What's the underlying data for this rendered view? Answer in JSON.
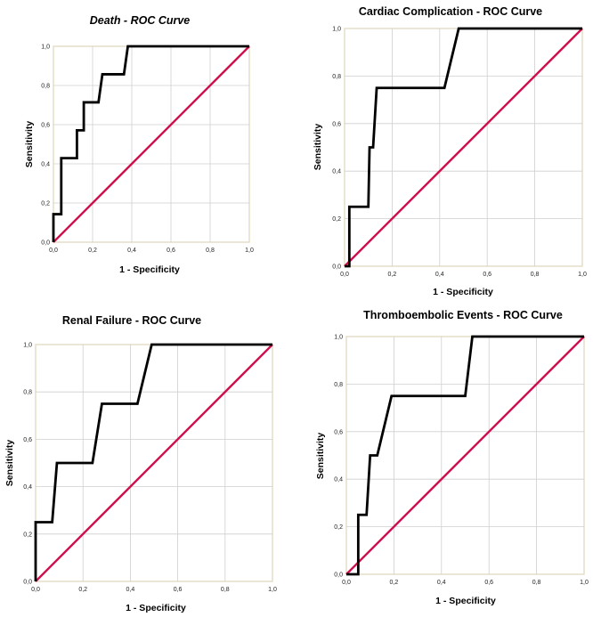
{
  "chart_data": [
    {
      "type": "line",
      "title": "Death -  ROC Curve",
      "title_italic": true,
      "xlabel": "1 - Specificity",
      "ylabel": "Sensitivity",
      "xlim": [
        0,
        1
      ],
      "ylim": [
        0,
        1
      ],
      "x_ticks": [
        "0,0",
        "0,2",
        "0,4",
        "0,6",
        "0,8",
        "1,0"
      ],
      "y_ticks": [
        "0,0",
        "0,2",
        "0,4",
        "0,6",
        "0,8",
        "1,0"
      ],
      "grid": true,
      "series": [
        {
          "name": "ROC curve",
          "color": "#000000",
          "points": [
            [
              0,
              0
            ],
            [
              0,
              0.143
            ],
            [
              0.04,
              0.143
            ],
            [
              0.04,
              0.429
            ],
            [
              0.12,
              0.429
            ],
            [
              0.12,
              0.571
            ],
            [
              0.155,
              0.571
            ],
            [
              0.155,
              0.714
            ],
            [
              0.23,
              0.714
            ],
            [
              0.25,
              0.857
            ],
            [
              0.36,
              0.857
            ],
            [
              0.38,
              1.0
            ],
            [
              1.0,
              1.0
            ]
          ]
        },
        {
          "name": "Reference line",
          "color": "#d0104c",
          "points": [
            [
              0,
              0
            ],
            [
              1,
              1
            ]
          ]
        }
      ]
    },
    {
      "type": "line",
      "title": "Cardiac Complication - ROC Curve",
      "title_italic": false,
      "xlabel": "1 - Specificity",
      "ylabel": "Sensitivity",
      "xlim": [
        0,
        1
      ],
      "ylim": [
        0,
        1
      ],
      "x_ticks": [
        "0,0",
        "0,2",
        "0,4",
        "0,6",
        "0,8",
        "1,0"
      ],
      "y_ticks": [
        "0,0",
        "0,2",
        "0,4",
        "0,6",
        "0,8",
        "1,0"
      ],
      "grid": true,
      "series": [
        {
          "name": "ROC curve",
          "color": "#000000",
          "points": [
            [
              0,
              0
            ],
            [
              0.02,
              0
            ],
            [
              0.02,
              0.25
            ],
            [
              0.1,
              0.25
            ],
            [
              0.105,
              0.5
            ],
            [
              0.12,
              0.5
            ],
            [
              0.135,
              0.75
            ],
            [
              0.42,
              0.75
            ],
            [
              0.48,
              1.0
            ],
            [
              1.0,
              1.0
            ]
          ]
        },
        {
          "name": "Reference line",
          "color": "#d0104c",
          "points": [
            [
              0,
              0
            ],
            [
              1,
              1
            ]
          ]
        }
      ]
    },
    {
      "type": "line",
      "title": "Renal Failure - ROC Curve",
      "title_italic": false,
      "xlabel": "1 - Specificity",
      "ylabel": "Sensitivity",
      "xlim": [
        0,
        1
      ],
      "ylim": [
        0,
        1
      ],
      "x_ticks": [
        "0,0",
        "0,2",
        "0,4",
        "0,6",
        "0,8",
        "1,0"
      ],
      "y_ticks": [
        "0,0",
        "0,2",
        "0,4",
        "0,6",
        "0,8",
        "1,0"
      ],
      "grid": true,
      "series": [
        {
          "name": "ROC curve",
          "color": "#000000",
          "points": [
            [
              0,
              0
            ],
            [
              0,
              0.25
            ],
            [
              0.07,
              0.25
            ],
            [
              0.09,
              0.5
            ],
            [
              0.24,
              0.5
            ],
            [
              0.28,
              0.75
            ],
            [
              0.43,
              0.75
            ],
            [
              0.49,
              1.0
            ],
            [
              1.0,
              1.0
            ]
          ]
        },
        {
          "name": "Reference line",
          "color": "#d0104c",
          "points": [
            [
              0,
              0
            ],
            [
              1,
              1
            ]
          ]
        }
      ]
    },
    {
      "type": "line",
      "title": "Thromboembolic Events - ROC Curve",
      "title_italic": false,
      "xlabel": "1 - Specificity",
      "ylabel": "Sensitivity",
      "xlim": [
        0,
        1
      ],
      "ylim": [
        0,
        1
      ],
      "x_ticks": [
        "0,0",
        "0,2",
        "0,4",
        "0,6",
        "0,8",
        "1,0"
      ],
      "y_ticks": [
        "0,0",
        "0,2",
        "0,4",
        "0,6",
        "0,8",
        "1,0"
      ],
      "grid": true,
      "series": [
        {
          "name": "ROC curve",
          "color": "#000000",
          "points": [
            [
              0,
              0
            ],
            [
              0.05,
              0
            ],
            [
              0.05,
              0.25
            ],
            [
              0.085,
              0.25
            ],
            [
              0.1,
              0.5
            ],
            [
              0.13,
              0.5
            ],
            [
              0.19,
              0.75
            ],
            [
              0.5,
              0.75
            ],
            [
              0.53,
              1.0
            ],
            [
              1.0,
              1.0
            ]
          ]
        },
        {
          "name": "Reference line",
          "color": "#d0104c",
          "points": [
            [
              0,
              0
            ],
            [
              1,
              1
            ]
          ]
        }
      ]
    }
  ],
  "colors": {
    "plot_border": "#e3dcc4",
    "grid": "#cfcfcf",
    "roc_curve": "#000000",
    "reference_line": "#d0104c"
  }
}
